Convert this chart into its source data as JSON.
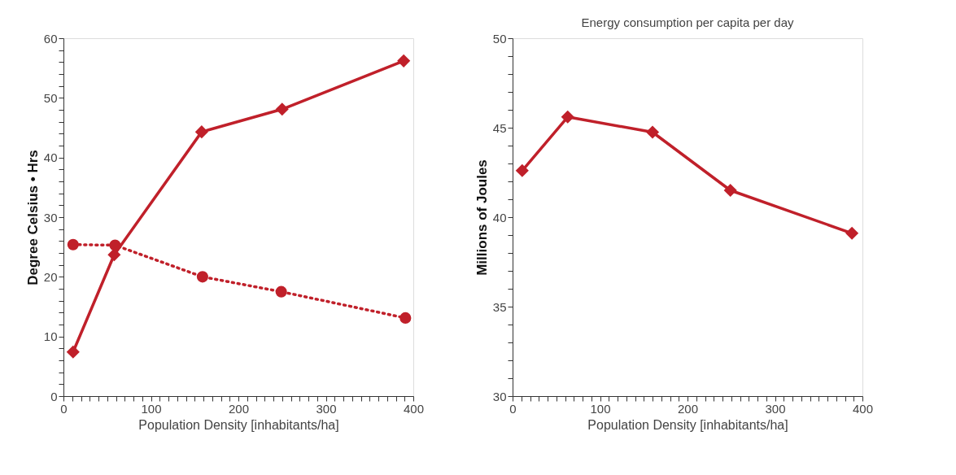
{
  "chart_data": [
    {
      "type": "line",
      "xlabel": "Population Density [inhabitants/ha]",
      "ylabel": "Degree Celsius • Hrs",
      "grid": false,
      "legend": false,
      "xlim": [
        0,
        400
      ],
      "ylim": [
        0,
        60
      ],
      "xticks": [
        0,
        {
          "value": 10,
          "label": null
        },
        {
          "value": 20,
          "label": null
        },
        {
          "value": 30,
          "label": null
        },
        {
          "value": 40,
          "label": null
        },
        {
          "value": 50,
          "label": null
        },
        {
          "value": 60,
          "label": null
        },
        {
          "value": 70,
          "label": null
        },
        {
          "value": 80,
          "label": null
        },
        {
          "value": 90,
          "label": null
        },
        100,
        {
          "value": 110,
          "label": null
        },
        {
          "value": 120,
          "label": null
        },
        {
          "value": 130,
          "label": null
        },
        {
          "value": 140,
          "label": null
        },
        {
          "value": 150,
          "label": null
        },
        {
          "value": 160,
          "label": null
        },
        {
          "value": 170,
          "label": null
        },
        {
          "value": 180,
          "label": null
        },
        {
          "value": 190,
          "label": null
        },
        200,
        {
          "value": 210,
          "label": null
        },
        {
          "value": 220,
          "label": null
        },
        {
          "value": 230,
          "label": null
        },
        {
          "value": 240,
          "label": null
        },
        {
          "value": 250,
          "label": null
        },
        {
          "value": 260,
          "label": null
        },
        {
          "value": 270,
          "label": null
        },
        {
          "value": 280,
          "label": null
        },
        {
          "value": 290,
          "label": null
        },
        300,
        {
          "value": 310,
          "label": null
        },
        {
          "value": 320,
          "label": null
        },
        {
          "value": 330,
          "label": null
        },
        {
          "value": 340,
          "label": null
        },
        {
          "value": 350,
          "label": null
        },
        {
          "value": 360,
          "label": null
        },
        {
          "value": 370,
          "label": null
        },
        {
          "value": 380,
          "label": null
        },
        {
          "value": 390,
          "label": null
        },
        400
      ],
      "yticks": [
        0,
        {
          "value": 2,
          "label": null
        },
        {
          "value": 4,
          "label": null
        },
        {
          "value": 6,
          "label": null
        },
        {
          "value": 8,
          "label": null
        },
        10,
        {
          "value": 12,
          "label": null
        },
        {
          "value": 14,
          "label": null
        },
        {
          "value": 16,
          "label": null
        },
        {
          "value": 18,
          "label": null
        },
        20,
        {
          "value": 22,
          "label": null
        },
        {
          "value": 24,
          "label": null
        },
        {
          "value": 26,
          "label": null
        },
        {
          "value": 28,
          "label": null
        },
        30,
        {
          "value": 32,
          "label": null
        },
        {
          "value": 34,
          "label": null
        },
        {
          "value": 36,
          "label": null
        },
        {
          "value": 38,
          "label": null
        },
        40,
        {
          "value": 42,
          "label": null
        },
        {
          "value": 44,
          "label": null
        },
        {
          "value": 46,
          "label": null
        },
        {
          "value": 48,
          "label": null
        },
        50,
        {
          "value": 52,
          "label": null
        },
        {
          "value": 54,
          "label": null
        },
        {
          "value": 56,
          "label": null
        },
        {
          "value": 58,
          "label": null
        },
        60
      ],
      "series": [
        {
          "color": "#c0202a",
          "marker": "diamond",
          "line_style": "solid",
          "x": [
            11,
            58,
            158,
            250,
            389
          ],
          "values": [
            7.4,
            23.7,
            44.3,
            48.1,
            56.2
          ]
        },
        {
          "color": "#c0202a",
          "marker": "circle",
          "line_style": "dotted",
          "x": [
            11,
            59,
            159,
            249,
            391
          ],
          "values": [
            25.4,
            25.3,
            20.0,
            17.5,
            13.1
          ]
        }
      ]
    },
    {
      "type": "line",
      "title": "Energy consumption per capita per day",
      "xlabel": "Population Density [inhabitants/ha]",
      "ylabel": "Millions of Joules",
      "grid": false,
      "legend": false,
      "xlim": [
        0,
        400
      ],
      "ylim": [
        30,
        50
      ],
      "xticks": [
        0,
        {
          "value": 10,
          "label": null
        },
        {
          "value": 20,
          "label": null
        },
        {
          "value": 30,
          "label": null
        },
        {
          "value": 40,
          "label": null
        },
        {
          "value": 50,
          "label": null
        },
        {
          "value": 60,
          "label": null
        },
        {
          "value": 70,
          "label": null
        },
        {
          "value": 80,
          "label": null
        },
        {
          "value": 90,
          "label": null
        },
        100,
        {
          "value": 110,
          "label": null
        },
        {
          "value": 120,
          "label": null
        },
        {
          "value": 130,
          "label": null
        },
        {
          "value": 140,
          "label": null
        },
        {
          "value": 150,
          "label": null
        },
        {
          "value": 160,
          "label": null
        },
        {
          "value": 170,
          "label": null
        },
        {
          "value": 180,
          "label": null
        },
        {
          "value": 190,
          "label": null
        },
        200,
        {
          "value": 210,
          "label": null
        },
        {
          "value": 220,
          "label": null
        },
        {
          "value": 230,
          "label": null
        },
        {
          "value": 240,
          "label": null
        },
        {
          "value": 250,
          "label": null
        },
        {
          "value": 260,
          "label": null
        },
        {
          "value": 270,
          "label": null
        },
        {
          "value": 280,
          "label": null
        },
        {
          "value": 290,
          "label": null
        },
        300,
        {
          "value": 310,
          "label": null
        },
        {
          "value": 320,
          "label": null
        },
        {
          "value": 330,
          "label": null
        },
        {
          "value": 340,
          "label": null
        },
        {
          "value": 350,
          "label": null
        },
        {
          "value": 360,
          "label": null
        },
        {
          "value": 370,
          "label": null
        },
        {
          "value": 380,
          "label": null
        },
        {
          "value": 390,
          "label": null
        },
        400
      ],
      "yticks": [
        30,
        {
          "value": 31,
          "label": null
        },
        {
          "value": 32,
          "label": null
        },
        {
          "value": 33,
          "label": null
        },
        {
          "value": 34,
          "label": null
        },
        35,
        {
          "value": 36,
          "label": null
        },
        {
          "value": 37,
          "label": null
        },
        {
          "value": 38,
          "label": null
        },
        {
          "value": 39,
          "label": null
        },
        40,
        {
          "value": 41,
          "label": null
        },
        {
          "value": 42,
          "label": null
        },
        {
          "value": 43,
          "label": null
        },
        {
          "value": 44,
          "label": null
        },
        45,
        {
          "value": 46,
          "label": null
        },
        {
          "value": 47,
          "label": null
        },
        {
          "value": 48,
          "label": null
        },
        {
          "value": 49,
          "label": null
        },
        50
      ],
      "series": [
        {
          "color": "#c0202a",
          "marker": "diamond",
          "line_style": "solid",
          "x": [
            11,
            63,
            160,
            249,
            388
          ],
          "values": [
            42.6,
            45.6,
            44.75,
            41.5,
            39.1
          ]
        }
      ]
    }
  ]
}
